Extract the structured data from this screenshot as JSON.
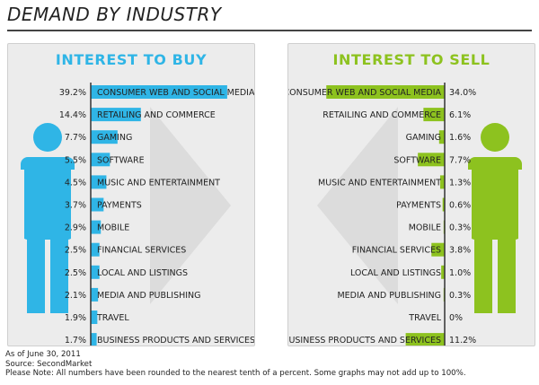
{
  "title": "DEMAND BY INDUSTRY",
  "colors": {
    "buy": "#2fb5e6",
    "sell": "#8dc21f",
    "axis": "#333333",
    "bg_arrow": "#dcdcdc"
  },
  "chart_data": [
    {
      "type": "bar",
      "title": "INTEREST TO BUY",
      "categories": [
        "CONSUMER WEB AND SOCIAL MEDIA",
        "RETAILING AND COMMERCE",
        "GAMING",
        "SOFTWARE",
        "MUSIC AND ENTERTAINMENT",
        "PAYMENTS",
        "MOBILE",
        "FINANCIAL SERVICES",
        "LOCAL AND LISTINGS",
        "MEDIA AND PUBLISHING",
        "TRAVEL",
        "BUSINESS PRODUCTS AND SERVICES"
      ],
      "values": [
        39.2,
        14.4,
        7.7,
        5.5,
        4.5,
        3.7,
        2.9,
        2.5,
        2.5,
        2.1,
        1.9,
        1.7
      ],
      "value_labels": [
        "39.2%",
        "14.4%",
        "7.7%",
        "5.5%",
        "4.5%",
        "3.7%",
        "2.9%",
        "2.5%",
        "2.5%",
        "2.1%",
        "1.9%",
        "1.7%"
      ],
      "orientation": "horizontal",
      "direction": "right",
      "grid": false
    },
    {
      "type": "bar",
      "title": "INTEREST TO SELL",
      "categories": [
        "CONSUMER WEB AND SOCIAL MEDIA",
        "RETAILING AND COMMERCE",
        "GAMING",
        "SOFTWARE",
        "MUSIC AND ENTERTAINMENT",
        "PAYMENTS",
        "MOBILE",
        "FINANCIAL SERVICES",
        "LOCAL AND LISTINGS",
        "MEDIA AND PUBLISHING",
        "TRAVEL",
        "BUSINESS PRODUCTS AND SERVICES"
      ],
      "values": [
        34.0,
        6.1,
        1.6,
        7.7,
        1.3,
        0.6,
        0.3,
        3.8,
        1.0,
        0.3,
        0,
        11.2
      ],
      "value_labels": [
        "34.0%",
        "6.1%",
        "1.6%",
        "7.7%",
        "1.3%",
        "0.6%",
        "0.3%",
        "3.8%",
        "1.0%",
        "0.3%",
        "0%",
        "11.2%"
      ],
      "orientation": "horizontal",
      "direction": "left",
      "grid": false
    }
  ],
  "footer": {
    "line1": "As of June 30, 2011",
    "line2": "Source: SecondMarket",
    "line3": "Please Note: All numbers have been rounded to the nearest tenth of a percent. Some graphs may not add up to 100%."
  }
}
